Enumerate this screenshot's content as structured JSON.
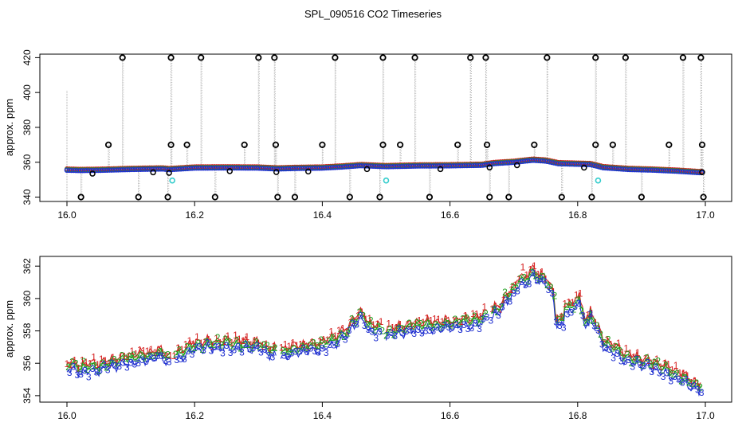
{
  "page": {
    "title": "SPL_090516  CO2 Timeseries"
  },
  "chart_data": [
    {
      "type": "scatter",
      "title": "SPL_090516  CO2 Timeseries",
      "ylabel": "approx. ppm",
      "xlabel": "",
      "xlim": [
        16.0,
        17.0
      ],
      "ylim": [
        337.5,
        422
      ],
      "xticks": [
        "16.0",
        "16.2",
        "16.4",
        "16.6",
        "16.8",
        "17.0"
      ],
      "yticks": [
        "340",
        "360",
        "380",
        "400",
        "420"
      ],
      "base_curve": [
        [
          16.0,
          355.8
        ],
        [
          16.02,
          355.6
        ],
        [
          16.05,
          355.7
        ],
        [
          16.1,
          356.2
        ],
        [
          16.15,
          356.5
        ],
        [
          16.16,
          356.1
        ],
        [
          16.2,
          357.0
        ],
        [
          16.25,
          357.1
        ],
        [
          16.3,
          357.0
        ],
        [
          16.33,
          356.5
        ],
        [
          16.36,
          356.8
        ],
        [
          16.4,
          357.0
        ],
        [
          16.43,
          357.6
        ],
        [
          16.46,
          358.4
        ],
        [
          16.5,
          357.8
        ],
        [
          16.55,
          358.2
        ],
        [
          16.6,
          358.3
        ],
        [
          16.65,
          358.6
        ],
        [
          16.67,
          359.6
        ],
        [
          16.7,
          360.3
        ],
        [
          16.73,
          361.5
        ],
        [
          16.75,
          361.0
        ],
        [
          16.77,
          359.5
        ],
        [
          16.8,
          359.2
        ],
        [
          16.82,
          359.0
        ],
        [
          16.84,
          357.2
        ],
        [
          16.88,
          356.2
        ],
        [
          16.92,
          355.8
        ],
        [
          16.96,
          355.1
        ],
        [
          16.99,
          354.4
        ]
      ],
      "outliers_high": [
        16.087,
        16.163,
        16.21,
        16.3,
        16.325,
        16.42,
        16.495,
        16.545,
        16.632,
        16.656,
        16.752,
        16.828,
        16.875,
        16.965,
        16.993
      ],
      "outliers_mid": [
        16.065,
        16.163,
        16.188,
        16.278,
        16.327,
        16.4,
        16.495,
        16.522,
        16.612,
        16.658,
        16.732,
        16.828,
        16.855,
        16.943,
        16.995
      ],
      "outliers_low": [
        16.022,
        16.112,
        16.158,
        16.232,
        16.33,
        16.357,
        16.443,
        16.49,
        16.568,
        16.662,
        16.692,
        16.775,
        16.822,
        16.9,
        16.997
      ],
      "cyan_points": [
        [
          16.165,
          349.5
        ],
        [
          16.5,
          349.5
        ],
        [
          16.832,
          349.5
        ]
      ],
      "colors": {
        "series1": "#d62020",
        "series2": "#20a020",
        "series3": "#2030d0",
        "outlier": "#000000",
        "cyan": "#33cccc",
        "drop": "#aaaaaa"
      }
    },
    {
      "type": "scatter",
      "ylabel": "approx. ppm",
      "xlabel": "",
      "xlim": [
        16.0,
        17.0
      ],
      "ylim": [
        353.6,
        362.6
      ],
      "xticks": [
        "16.0",
        "16.2",
        "16.4",
        "16.6",
        "16.8",
        "17.0"
      ],
      "yticks": [
        "354",
        "356",
        "358",
        "360",
        "362"
      ],
      "series": [
        {
          "label": "1",
          "color": "#d62020",
          "offset": 0.35
        },
        {
          "label": "2",
          "color": "#20a020",
          "offset": 0.15
        },
        {
          "label": "3",
          "color": "#2030d0",
          "offset": -0.15
        }
      ]
    }
  ]
}
